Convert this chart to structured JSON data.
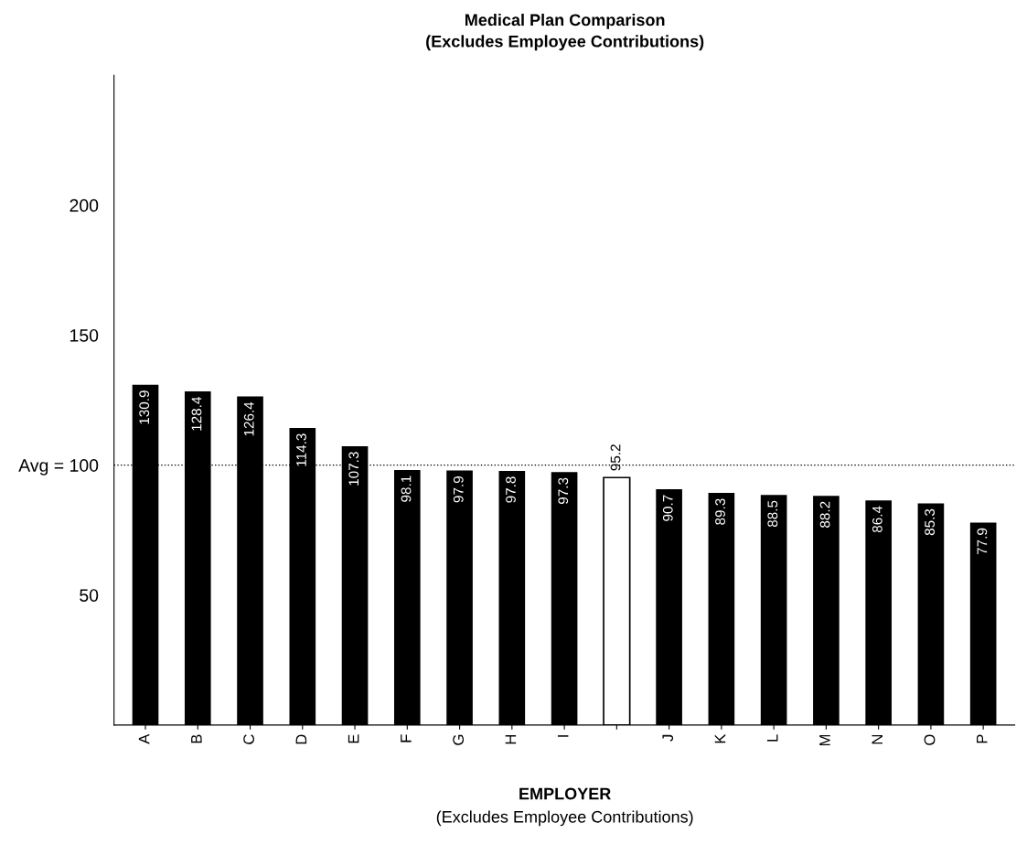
{
  "chart_data": {
    "type": "bar",
    "title": "Medical Plan Comparison",
    "subtitle": "(Excludes Employee Contributions)",
    "xlabel": "EMPLOYER",
    "annotations": [
      "(Excludes Employee Contributions)"
    ],
    "categories": [
      "A",
      "B",
      "C",
      "D",
      "E",
      "F",
      "G",
      "H",
      "I",
      null,
      "J",
      "K",
      "L",
      "M",
      "N",
      "O",
      "P"
    ],
    "values": [
      130.9,
      128.4,
      126.4,
      114.3,
      107.3,
      98.1,
      97.9,
      97.8,
      97.3,
      95.2,
      90.7,
      89.3,
      88.5,
      88.2,
      86.4,
      85.3,
      77.9
    ],
    "colors": [
      "#000000",
      "#000000",
      "#000000",
      "#000000",
      "#000000",
      "#000000",
      "#000000",
      "#000000",
      "#000000",
      "#ffffff",
      "#000000",
      "#000000",
      "#000000",
      "#000000",
      "#000000",
      "#000000",
      "#000000"
    ],
    "data_labels": true,
    "ylim": [
      0,
      250
    ],
    "yticks": [
      50,
      {
        "value": 100,
        "label": "Avg = 100"
      },
      150,
      200
    ],
    "ref_lines": [
      {
        "axis": "y",
        "value": 100,
        "line_style": "dotted",
        "color": "#000000"
      }
    ],
    "grid": false,
    "legend": false
  }
}
